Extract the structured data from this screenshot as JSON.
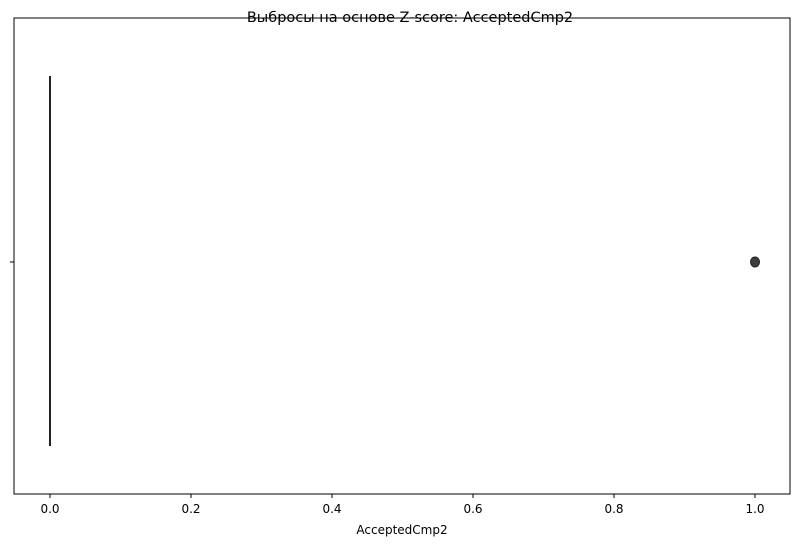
{
  "chart_data": {
    "type": "box",
    "title": "Выбросы на основе Z-score: AcceptedCmp2",
    "xlabel": "AcceptedCmp2",
    "ylabel": "",
    "orientation": "horizontal",
    "xlim": [
      -0.05,
      1.05
    ],
    "xticks": [
      0.0,
      0.2,
      0.4,
      0.6,
      0.8,
      1.0
    ],
    "xtick_labels": [
      "0.0",
      "0.2",
      "0.4",
      "0.6",
      "0.8",
      "1.0"
    ],
    "box": {
      "q1": 0.0,
      "median": 0.0,
      "q3": 0.0,
      "whisker_low": 0.0,
      "whisker_high": 0.0
    },
    "outliers": [
      1.0
    ],
    "grid": false,
    "colors": {
      "box": "#222222",
      "outlier": "#3d3d3d",
      "axes": "#000000"
    }
  }
}
